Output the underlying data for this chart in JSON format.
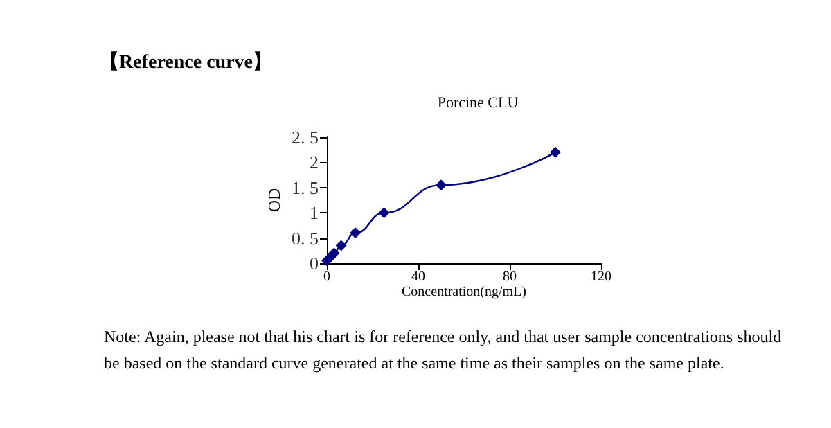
{
  "chart_data": {
    "type": "line",
    "title": "Porcine CLU",
    "xlabel": "Concentration(ng/mL)",
    "ylabel": "OD",
    "annotations": [
      "【Reference curve】",
      "Note: Again, please not that his chart is for reference only, and that user sample concentrations should be based on the standard curve generated at the same time as their samples on the same plate."
    ],
    "x": [
      0,
      1.56,
      3.125,
      6.25,
      12.5,
      25,
      50,
      100
    ],
    "series": [
      {
        "color": "#000080",
        "values": [
          0.05,
          0.12,
          0.2,
          0.35,
          0.6,
          1.0,
          1.55,
          2.2
        ]
      }
    ],
    "xlim": [
      0,
      120
    ],
    "xticks": [
      0,
      40,
      80,
      120
    ],
    "ylim": [
      0,
      2.5
    ],
    "yticks": [
      0,
      {
        "value": 0.5,
        "label": "0. 5"
      },
      1,
      {
        "value": 1.5,
        "label": "1. 5"
      },
      2,
      {
        "value": 2.5,
        "label": "2. 5"
      }
    ],
    "grid": false,
    "marker": "diamond",
    "line_style": "solid"
  }
}
